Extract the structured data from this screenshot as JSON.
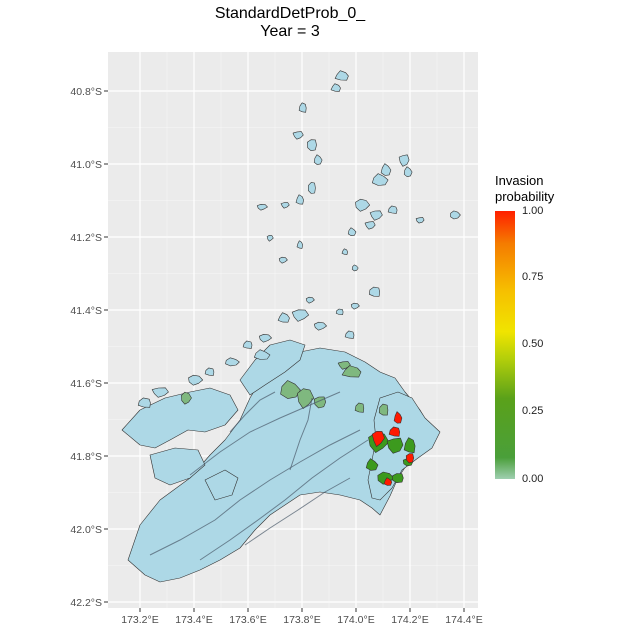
{
  "title": {
    "line1": "StandardDetProb_0_",
    "line2": "Year = 3"
  },
  "axes": {
    "x_ticks": [
      "173.2°E",
      "173.4°E",
      "173.6°E",
      "173.8°E",
      "174.0°E",
      "174.2°E",
      "174.4°E"
    ],
    "y_ticks": [
      "40.8°S",
      "41.0°S",
      "41.2°S",
      "41.4°S",
      "41.6°S",
      "41.8°S",
      "42.0°S",
      "42.2°S"
    ]
  },
  "legend": {
    "title_line1": "Invasion",
    "title_line2": "probability",
    "labels": [
      "1.00",
      "0.75",
      "0.50",
      "0.25",
      "0.00"
    ]
  },
  "colors": {
    "panel": "#ebebeb",
    "grid": "#ffffff",
    "land": "#add8e6",
    "low_prob": "#7fb87f",
    "mid_prob": "#3c9a1e",
    "high_prob": "#ff1a00"
  }
}
